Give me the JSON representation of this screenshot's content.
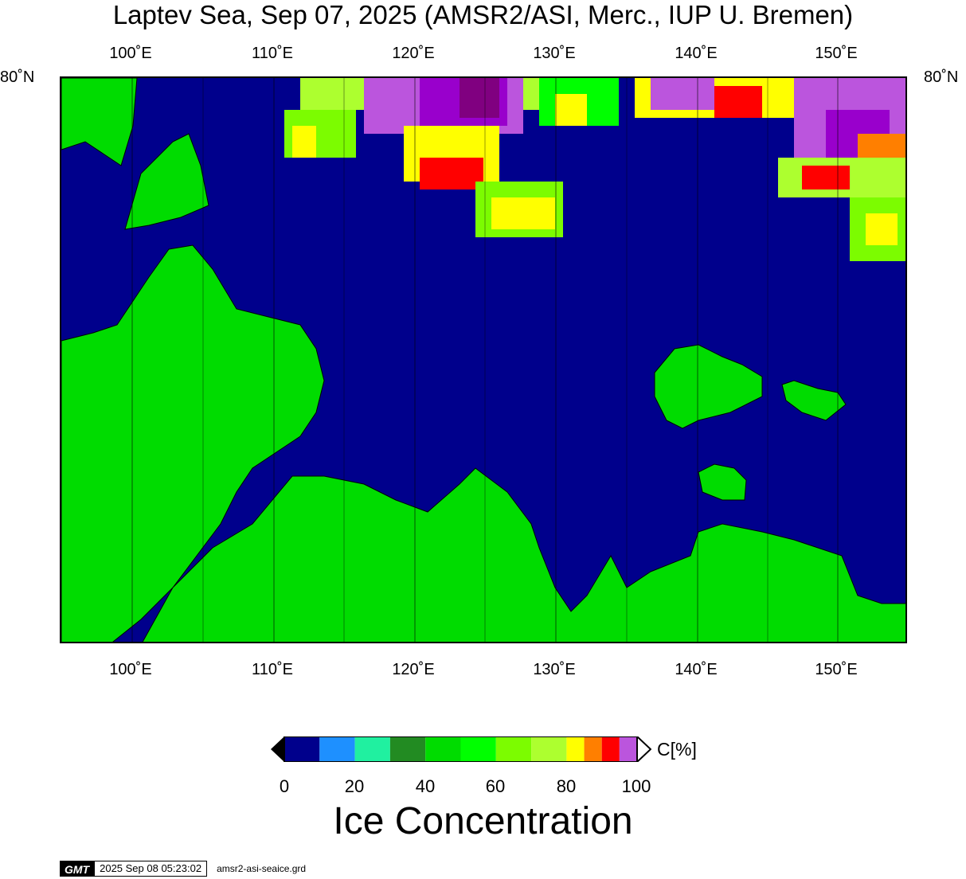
{
  "title": "Laptev Sea, Sep 07, 2025 (AMSR2/ASI, Merc., IUP U. Bremen)",
  "map": {
    "lon_labels": [
      "100˚E",
      "110˚E",
      "120˚E",
      "130˚E",
      "140˚E",
      "150˚E"
    ],
    "lat_label_left": "80˚N",
    "lat_label_right": "80˚N",
    "ocean_color": "#00008c",
    "land_color": "#00dc00"
  },
  "colorbar": {
    "unit_label": "C[%]",
    "ticks": [
      "0",
      "20",
      "40",
      "60",
      "80",
      "100"
    ],
    "colors": [
      "#00008c",
      "#1e90ff",
      "#20f0a0",
      "#228b22",
      "#00dc00",
      "#00ff00",
      "#7cfc00",
      "#adff2f",
      "#ffff00",
      "#ff7f00",
      "#ff0000",
      "#bb55dd",
      "#9900cc"
    ]
  },
  "main_label": "Ice Concentration",
  "footer": {
    "logo_text": "GMT",
    "timestamp": "2025 Sep 08 05:23:02",
    "filename": "amsr2-asi-seaice.grd"
  }
}
